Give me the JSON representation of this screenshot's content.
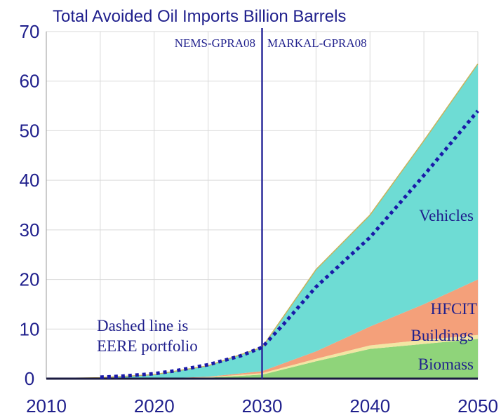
{
  "chart_data": {
    "type": "area",
    "title": "Total Avoided Oil Imports Billion Barrels",
    "xlabel": "",
    "ylabel": "",
    "xlim": [
      2010,
      2050
    ],
    "ylim": [
      0,
      70
    ],
    "x_ticks": [
      2010,
      2020,
      2030,
      2040,
      2050
    ],
    "y_ticks": [
      0,
      10,
      20,
      30,
      40,
      50,
      60,
      70
    ],
    "grid": true,
    "x": [
      2010,
      2015,
      2020,
      2025,
      2030,
      2035,
      2040,
      2045,
      2050
    ],
    "stacked_series": [
      {
        "name": "Biomass",
        "color": "#8fd47a",
        "values": [
          0,
          0,
          0,
          0.2,
          0.8,
          3.5,
          6.0,
          7.0,
          8.0
        ]
      },
      {
        "name": "Buildings",
        "color": "#f2e6a3",
        "values": [
          0,
          0,
          0,
          0.1,
          0.3,
          0.5,
          0.7,
          0.8,
          0.8
        ]
      },
      {
        "name": "HFCIT",
        "color": "#f4a07a",
        "values": [
          0,
          0,
          0,
          0.1,
          0.4,
          1.5,
          3.8,
          7.2,
          11.2
        ]
      },
      {
        "name": "Vehicles",
        "color": "#6edcd4",
        "values": [
          0,
          0.2,
          0.8,
          2.2,
          4.8,
          16.5,
          22.5,
          33.0,
          43.5
        ]
      }
    ],
    "dashed_series": {
      "name": "EERE portfolio",
      "color": "#1a1aa8",
      "x": [
        2015,
        2017,
        2020,
        2022,
        2025,
        2028,
        2030,
        2032,
        2035,
        2038,
        2040,
        2045,
        2050
      ],
      "values": [
        0.3,
        0.5,
        1.0,
        1.6,
        2.8,
        4.6,
        6.3,
        11.0,
        18.5,
        24.5,
        28.5,
        41.0,
        54.0
      ]
    },
    "divider": {
      "x": 2030,
      "left_label": "NEMS-GPRA08",
      "right_label": "MARKAL-GPRA08"
    },
    "annotations": {
      "dashed_note_line1": "Dashed line is",
      "dashed_note_line2": "EERE portfolio",
      "vehicles_label": "Vehicles",
      "hfcit_label": "HFCIT",
      "buildings_label": "Buildings",
      "biomass_label": "Biomass"
    },
    "colors": {
      "axis_text": "#1f1f8c",
      "grid": "#d9d9d9",
      "baseline": "#1a1a40",
      "divider": "#2b2b9a",
      "outline": "#c8b25a"
    }
  }
}
